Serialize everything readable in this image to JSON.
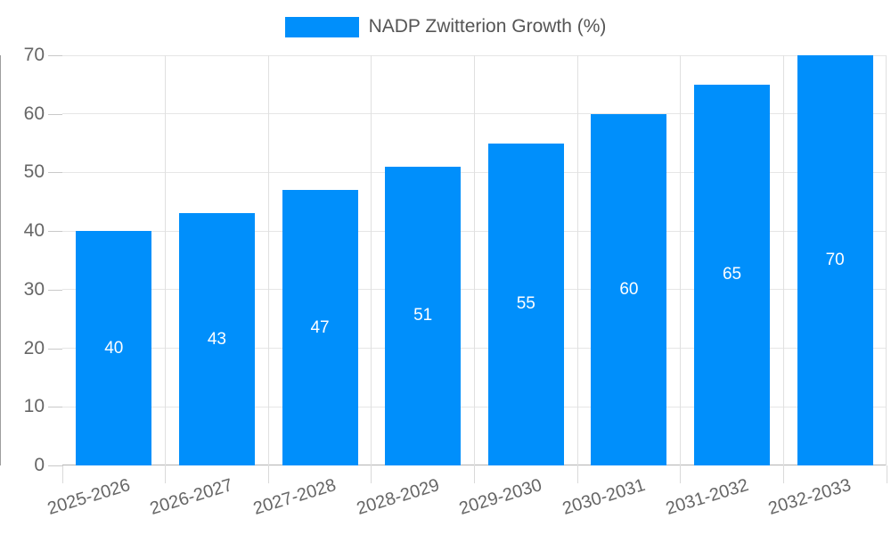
{
  "chart_data": {
    "type": "bar",
    "title": "NADP Zwitterion Growth (%)",
    "legend": [
      {
        "label": "NADP Zwitterion Growth (%)",
        "color": "#008FFB"
      }
    ],
    "legend_position": "top-center",
    "categories": [
      "2025-2026",
      "2026-2027",
      "2027-2028",
      "2028-2029",
      "2029-2030",
      "2030-2031",
      "2031-2032",
      "2032-2033"
    ],
    "series": [
      {
        "name": "NADP Zwitterion Growth (%)",
        "values": [
          40,
          43,
          47,
          51,
          55,
          60,
          65,
          70
        ]
      }
    ],
    "data_labels_shown": true,
    "xlabel": "",
    "ylabel": "",
    "ylim": [
      0,
      70
    ],
    "yticks": [
      0,
      10,
      20,
      30,
      40,
      50,
      60,
      70
    ],
    "grid": "horizontal and vertical light-gray gridlines",
    "x_label_rotation_deg": -17,
    "colors": {
      "bar": "#008FFB",
      "bar_label": "#FFFFFF",
      "tick_label": "#666666",
      "legend_text": "#555555",
      "gridline": "#E6E6E6",
      "axis_line": "#9E9E9E"
    }
  }
}
